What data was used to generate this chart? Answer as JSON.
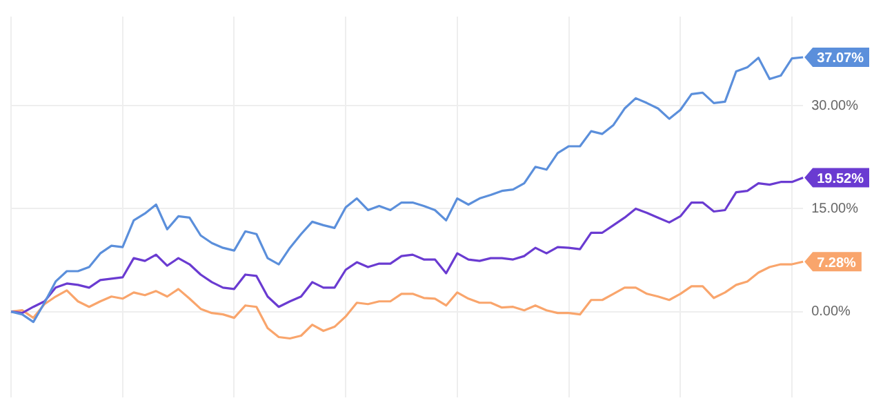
{
  "chart_data": {
    "type": "line",
    "categories": [
      null,
      null,
      null,
      null,
      null,
      null,
      null,
      null,
      null,
      null,
      null,
      null,
      null,
      null,
      null,
      null,
      null,
      null,
      null,
      null,
      null,
      null,
      null,
      null,
      null,
      null,
      null,
      null,
      null,
      null,
      null,
      null,
      null,
      null,
      null,
      null,
      null,
      null,
      null,
      null,
      null,
      null,
      null,
      null,
      null,
      null,
      null,
      null,
      null,
      null,
      null,
      null,
      null,
      null,
      null,
      null,
      null,
      null,
      null,
      null,
      null,
      null,
      null,
      null,
      null,
      null,
      null,
      null,
      null,
      null,
      null,
      null
    ],
    "series": [
      {
        "color": "#5b8fdb",
        "values": [
          0,
          -0.4,
          -1.5,
          1.3,
          4.4,
          5.9,
          5.9,
          6.5,
          8.5,
          9.6,
          9.4,
          13.3,
          14.3,
          15.6,
          12.0,
          13.9,
          13.7,
          11.1,
          10.0,
          9.3,
          8.9,
          11.7,
          11.3,
          7.8,
          6.9,
          9.3,
          11.3,
          13.1,
          12.6,
          12.2,
          15.2,
          16.5,
          14.8,
          15.4,
          14.8,
          15.9,
          15.9,
          15.4,
          14.8,
          13.3,
          16.5,
          15.6,
          16.5,
          17.0,
          17.6,
          17.8,
          18.7,
          21.1,
          20.7,
          23.1,
          24.1,
          24.1,
          26.3,
          25.9,
          27.2,
          29.6,
          31.1,
          30.4,
          29.6,
          28.1,
          29.4,
          31.7,
          31.9,
          30.4,
          30.6,
          35.0,
          35.6,
          37.0,
          33.9,
          34.4,
          36.9,
          37.07
        ],
        "value_labels": [
          null,
          null,
          null,
          null,
          null,
          null,
          null,
          null,
          null,
          null,
          null,
          null,
          null,
          null,
          null,
          null,
          null,
          null,
          null,
          null,
          null,
          null,
          null,
          null,
          null,
          null,
          null,
          null,
          null,
          null,
          null,
          null,
          null,
          null,
          null,
          null,
          null,
          null,
          null,
          null,
          null,
          null,
          null,
          null,
          null,
          null,
          null,
          null,
          null,
          null,
          null,
          null,
          null,
          null,
          null,
          null,
          null,
          null,
          null,
          null,
          null,
          null,
          null,
          null,
          null,
          null,
          null,
          null,
          null,
          null,
          null,
          "37.07%"
        ]
      },
      {
        "color": "#6a3bd1",
        "values": [
          0,
          -0.2,
          0.7,
          1.5,
          3.5,
          4.1,
          3.9,
          3.5,
          4.6,
          4.8,
          5.0,
          7.8,
          7.4,
          8.3,
          6.7,
          7.8,
          6.9,
          5.4,
          4.3,
          3.5,
          3.3,
          5.4,
          5.2,
          2.2,
          0.7,
          1.5,
          2.2,
          4.3,
          3.5,
          3.5,
          6.1,
          7.2,
          6.5,
          7.0,
          7.0,
          8.1,
          8.3,
          7.6,
          7.6,
          5.6,
          8.5,
          7.6,
          7.4,
          7.8,
          7.8,
          7.6,
          8.1,
          9.3,
          8.5,
          9.4,
          9.3,
          9.1,
          11.5,
          11.5,
          12.6,
          13.7,
          15.0,
          14.4,
          13.7,
          13.0,
          13.9,
          15.9,
          15.9,
          14.6,
          14.8,
          17.4,
          17.6,
          18.7,
          18.5,
          18.9,
          18.9,
          19.52
        ],
        "value_labels": [
          null,
          null,
          null,
          null,
          null,
          null,
          null,
          null,
          null,
          null,
          null,
          null,
          null,
          null,
          null,
          null,
          null,
          null,
          null,
          null,
          null,
          null,
          null,
          null,
          null,
          null,
          null,
          null,
          null,
          null,
          null,
          null,
          null,
          null,
          null,
          null,
          null,
          null,
          null,
          null,
          null,
          null,
          null,
          null,
          null,
          null,
          null,
          null,
          null,
          null,
          null,
          null,
          null,
          null,
          null,
          null,
          null,
          null,
          null,
          null,
          null,
          null,
          null,
          null,
          null,
          null,
          null,
          null,
          null,
          null,
          null,
          "19.52%"
        ]
      },
      {
        "color": "#f9a56c",
        "values": [
          0,
          0.2,
          -0.9,
          1.1,
          2.2,
          3.1,
          1.5,
          0.7,
          1.5,
          2.2,
          1.9,
          2.8,
          2.4,
          3.0,
          2.2,
          3.3,
          1.9,
          0.4,
          -0.2,
          -0.4,
          -0.9,
          0.9,
          0.7,
          -2.4,
          -3.7,
          -3.9,
          -3.5,
          -1.9,
          -2.8,
          -2.2,
          -0.7,
          1.3,
          1.1,
          1.5,
          1.5,
          2.6,
          2.6,
          2.0,
          1.9,
          0.9,
          2.8,
          1.9,
          1.3,
          1.3,
          0.6,
          0.7,
          0.2,
          0.9,
          0.2,
          -0.2,
          -0.2,
          -0.4,
          1.7,
          1.7,
          2.6,
          3.5,
          3.5,
          2.6,
          2.2,
          1.7,
          2.6,
          3.7,
          3.7,
          2.0,
          2.8,
          3.9,
          4.4,
          5.7,
          6.5,
          6.9,
          6.9,
          7.28
        ],
        "value_labels": [
          null,
          null,
          null,
          null,
          null,
          null,
          null,
          null,
          null,
          null,
          null,
          null,
          null,
          null,
          null,
          null,
          null,
          null,
          null,
          null,
          null,
          null,
          null,
          null,
          null,
          null,
          null,
          null,
          null,
          null,
          null,
          null,
          null,
          null,
          null,
          null,
          null,
          null,
          null,
          null,
          null,
          null,
          null,
          null,
          null,
          null,
          null,
          null,
          null,
          null,
          null,
          null,
          null,
          null,
          null,
          null,
          null,
          null,
          null,
          null,
          null,
          null,
          null,
          null,
          null,
          null,
          null,
          null,
          null,
          null,
          null,
          "7.28%"
        ]
      }
    ],
    "ylim": [
      -12.5,
      43
    ],
    "yticks": [
      {
        "value": 0,
        "label": "0.00%"
      },
      {
        "value": 15,
        "label": "15.00%"
      },
      {
        "value": 30,
        "label": "30.00%"
      }
    ],
    "grid": true,
    "tick_labels": "y",
    "marker": "none",
    "line_style": "solid"
  }
}
